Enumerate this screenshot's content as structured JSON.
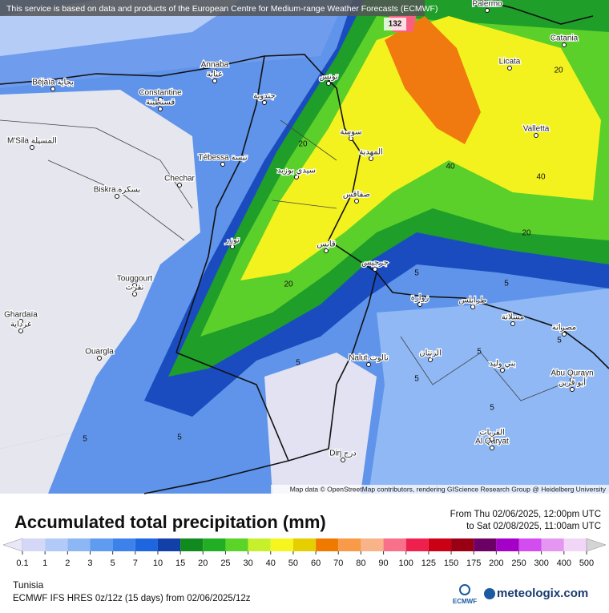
{
  "banner": "This service is based on data and products of the European Centre for Medium-range Weather Forecasts (ECMWF)",
  "attribution": "Map data © OpenStreetMap contributors, rendering GIScience Research Group @ Heidelberg University",
  "map": {
    "places": [
      {
        "label": "Palermo"
      },
      {
        "label": "Catania"
      },
      {
        "label": "Licata"
      },
      {
        "label": "Valletta"
      },
      {
        "label": "Annaba"
      },
      {
        "label": "عنابة"
      },
      {
        "label": "Béjaïa بجاية"
      },
      {
        "label": "Constantine"
      },
      {
        "label": "قسنطينة"
      },
      {
        "label": "M'Sila المسيلة"
      },
      {
        "label": "Tébessa تبسة"
      },
      {
        "label": "Chechar"
      },
      {
        "label": "Biskra بسكرة"
      },
      {
        "label": "Touggourt"
      },
      {
        "label": "تقرت"
      },
      {
        "label": "Ghardaïa"
      },
      {
        "label": "غرداية"
      },
      {
        "label": "Ouargla"
      },
      {
        "label": "Nalut نالوت"
      },
      {
        "label": "Dirj درج"
      },
      {
        "label": "Al Qaryat"
      },
      {
        "label": "القريات"
      },
      {
        "label": "Abu Qurayn"
      },
      {
        "label": "أبو قرين"
      },
      {
        "label": "مصراتة"
      },
      {
        "label": "تونس"
      },
      {
        "label": "سوسة"
      },
      {
        "label": "المهدية"
      },
      {
        "label": "صفاقس"
      },
      {
        "label": "قابس"
      },
      {
        "label": "جرجيس"
      },
      {
        "label": "طرابلس"
      },
      {
        "label": "زوارة"
      },
      {
        "label": "الزنتان"
      },
      {
        "label": "مسلاتة"
      },
      {
        "label": "بني وليد"
      },
      {
        "label": "سيدي بوزيد"
      },
      {
        "label": "توزر"
      },
      {
        "label": "جندوبة"
      }
    ],
    "contour_labels": [
      132,
      40,
      40,
      20,
      20,
      20,
      20,
      5,
      5,
      5,
      5,
      5,
      5,
      5,
      5,
      5
    ]
  },
  "legend": {
    "title": "Accumulated total precipitation (mm)",
    "period_from": "From Thu 02/06/2025, 12:00pm UTC",
    "period_to": "to Sat 02/08/2025, 11:00am UTC",
    "levels": [
      0.1,
      1,
      2,
      3,
      5,
      7,
      10,
      15,
      20,
      25,
      30,
      40,
      50,
      60,
      70,
      80,
      90,
      100,
      125,
      150,
      175,
      200,
      250,
      300,
      400,
      500
    ],
    "colors": [
      "#e8e8f8",
      "#d4d8f6",
      "#b2caf8",
      "#8cb6f4",
      "#5f9cf0",
      "#3c82ea",
      "#1e66e0",
      "#1340a8",
      "#108a1e",
      "#22ae22",
      "#5ad426",
      "#c6ef2c",
      "#f6f61e",
      "#e6cf00",
      "#f07a00",
      "#f89a48",
      "#f8b488",
      "#f8708a",
      "#f0204e",
      "#cc0014",
      "#9a0014",
      "#6c0064",
      "#a400c8",
      "#d24cf0",
      "#e496f2",
      "#f2d6f8",
      "#d4d4d4"
    ]
  },
  "footer": {
    "region": "Tunisia",
    "model": "ECMWF IFS HRES 0z/12z (15 days) from 02/06/2025/12z",
    "ecmwf_logo": "ECMWF",
    "brand": "meteologix.com"
  }
}
